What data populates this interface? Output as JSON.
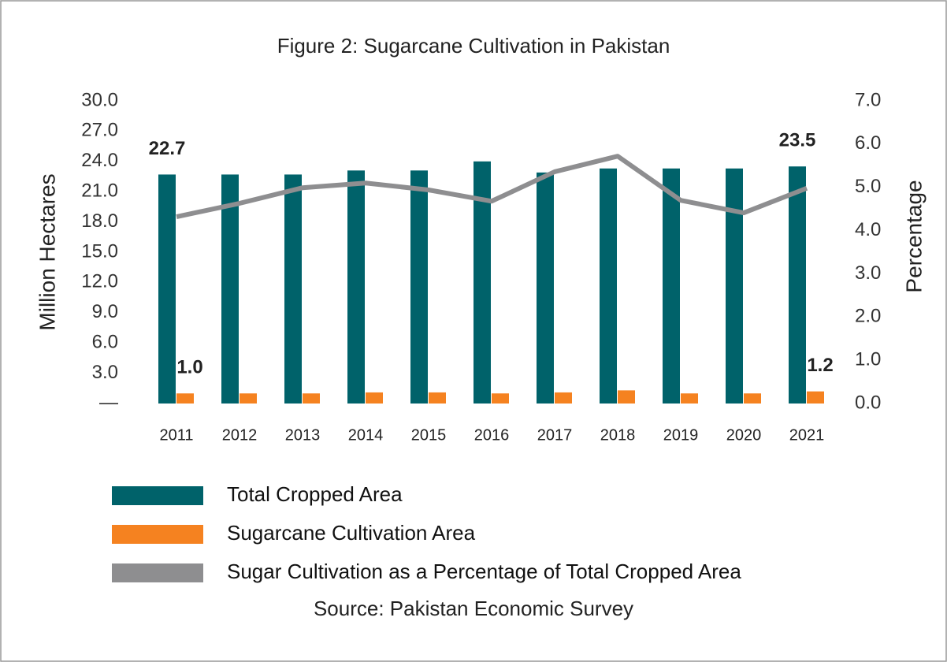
{
  "chart_data": {
    "type": "bar",
    "title": "Figure 2: Sugarcane Cultivation in Pakistan",
    "source": "Source: Pakistan Economic Survey",
    "y_label": "Million Hectares",
    "y2_label": "Percentage",
    "categories": [
      "2011",
      "2012",
      "2013",
      "2014",
      "2015",
      "2016",
      "2017",
      "2018",
      "2019",
      "2020",
      "2021"
    ],
    "series": [
      {
        "name": "Total Cropped Area",
        "type": "bar",
        "color": "#00626a",
        "values": [
          22.7,
          22.7,
          22.7,
          23.1,
          23.1,
          24.0,
          22.9,
          23.3,
          23.3,
          23.3,
          23.5
        ],
        "value_labels": [
          "22.7",
          null,
          null,
          null,
          null,
          null,
          null,
          null,
          null,
          null,
          "23.5"
        ]
      },
      {
        "name": "Sugarcane Cultivation Area",
        "type": "bar",
        "color": "#f58220",
        "values": [
          1.0,
          1.0,
          1.0,
          1.1,
          1.1,
          1.0,
          1.1,
          1.3,
          1.0,
          1.0,
          1.2
        ],
        "value_labels": [
          "1.0",
          null,
          null,
          null,
          null,
          null,
          null,
          null,
          null,
          null,
          "1.2"
        ]
      },
      {
        "name": "Sugar Cultivation as a Percentage of Total Cropped Area",
        "type": "line",
        "axis": "y2",
        "color": "#8e8e90",
        "values": [
          4.32,
          4.63,
          4.99,
          5.1,
          4.94,
          4.68,
          5.36,
          5.72,
          4.7,
          4.41,
          4.98
        ]
      }
    ],
    "ylim": [
      0,
      30
    ],
    "yticks": [
      {
        "value": 0,
        "label": "—"
      },
      {
        "value": 3,
        "label": "3.0"
      },
      {
        "value": 6,
        "label": "6.0"
      },
      {
        "value": 9,
        "label": "9.0"
      },
      {
        "value": 12,
        "label": "12.0"
      },
      {
        "value": 15,
        "label": "15.0"
      },
      {
        "value": 18,
        "label": "18.0"
      },
      {
        "value": 21,
        "label": "21.0"
      },
      {
        "value": 24,
        "label": "24.0"
      },
      {
        "value": 27,
        "label": "27.0"
      },
      {
        "value": 30,
        "label": "30.0"
      }
    ],
    "y2lim": [
      0,
      7
    ],
    "y2ticks": [
      {
        "value": 0,
        "label": "0.0"
      },
      {
        "value": 1,
        "label": "1.0"
      },
      {
        "value": 2,
        "label": "2.0"
      },
      {
        "value": 3,
        "label": "3.0"
      },
      {
        "value": 4,
        "label": "4.0"
      },
      {
        "value": 5,
        "label": "5.0"
      },
      {
        "value": 6,
        "label": "6.0"
      },
      {
        "value": 7,
        "label": "7.0"
      }
    ],
    "grid": false
  }
}
